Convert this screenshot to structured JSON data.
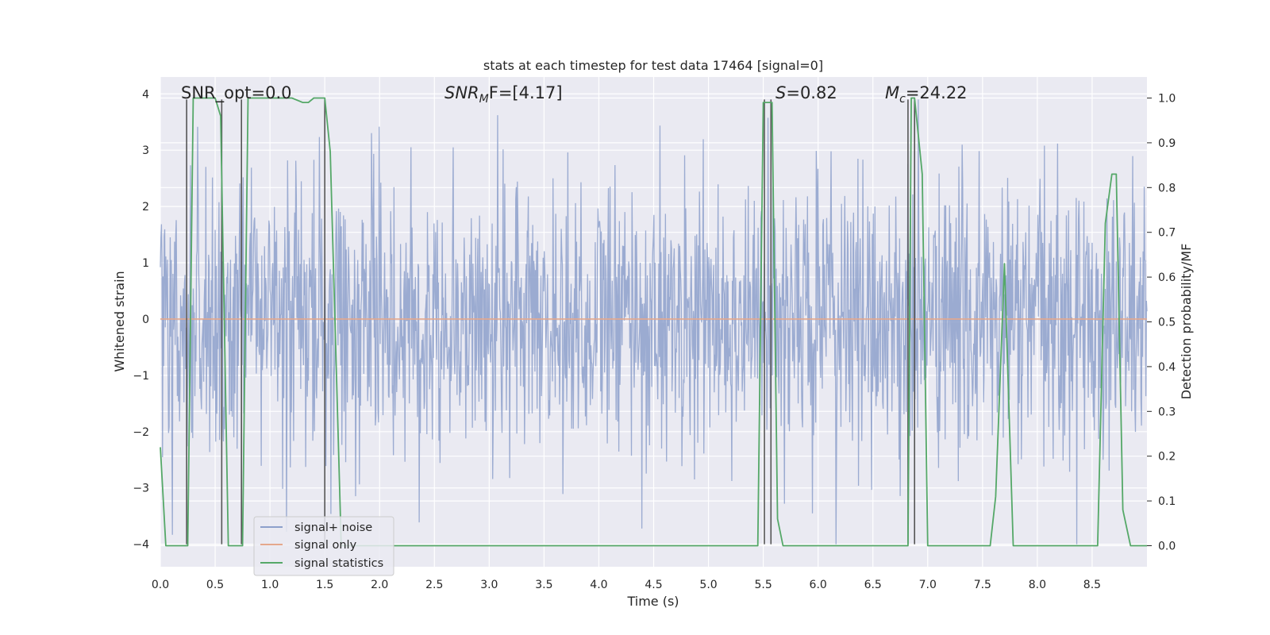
{
  "chart_data": {
    "type": "line",
    "title": "stats at each timestep for test data 17464 [signal=0]",
    "xlabel": "Time (s)",
    "ylabel": "Whitened strain",
    "y2label": "Detection probability/MF",
    "xlim": [
      0.0,
      9.0
    ],
    "ylim": [
      -4.4,
      4.3
    ],
    "y2lim": [
      -0.047,
      1.047
    ],
    "xticks": [
      0.0,
      0.5,
      1.0,
      1.5,
      2.0,
      2.5,
      3.0,
      3.5,
      4.0,
      4.5,
      5.0,
      5.5,
      6.0,
      6.5,
      7.0,
      7.5,
      8.0,
      8.5
    ],
    "xtick_labels": [
      "0.0",
      "0.5",
      "1.0",
      "1.5",
      "2.0",
      "2.5",
      "3.0",
      "3.5",
      "4.0",
      "4.5",
      "5.0",
      "5.5",
      "6.0",
      "6.5",
      "7.0",
      "7.5",
      "8.0",
      "8.5"
    ],
    "yticks": [
      -4,
      -3,
      -2,
      -1,
      0,
      1,
      2,
      3,
      4
    ],
    "ytick_labels": [
      "−4",
      "−3",
      "−2",
      "−1",
      "0",
      "1",
      "2",
      "3",
      "4"
    ],
    "y2ticks": [
      0.0,
      0.1,
      0.2,
      0.3,
      0.4,
      0.5,
      0.6,
      0.7,
      0.8,
      0.9,
      1.0
    ],
    "y2tick_labels": [
      "0.0",
      "0.1",
      "0.2",
      "0.3",
      "0.4",
      "0.5",
      "0.6",
      "0.7",
      "0.8",
      "0.9",
      "1.0"
    ],
    "grid": true,
    "legend_position": "lower-left",
    "annotations": {
      "snr_opt": "SNR_opt=0.0",
      "snr_mf_base": "SNR",
      "snr_mf_sub": "M",
      "snr_mf_rest": "F=[4.17]",
      "s_italic": "S",
      "s_rest": "=0.82",
      "mc_base": "M",
      "mc_sub": "c",
      "mc_rest": "=24.22"
    },
    "series": [
      {
        "name": "signal+ noise",
        "axis": "left",
        "color": "#8da0cb",
        "kind": "noise",
        "duration": 9.0,
        "samples": 1800,
        "approx_std": 1.0,
        "approx_range": [
          -4.0,
          3.9
        ]
      },
      {
        "name": "signal only",
        "axis": "left",
        "color": "#e5a88c",
        "x": [
          0.0,
          9.0
        ],
        "y": [
          0.0,
          0.0
        ]
      },
      {
        "name": "signal statistics",
        "axis": "right",
        "color": "#55a868",
        "x": [
          0.0,
          0.05,
          0.25,
          0.3,
          0.45,
          0.5,
          0.55,
          0.62,
          0.7,
          0.75,
          0.8,
          1.2,
          1.3,
          1.35,
          1.4,
          1.5,
          1.55,
          1.65,
          5.45,
          5.5,
          5.58,
          5.63,
          5.68,
          6.82,
          6.85,
          6.88,
          6.95,
          7.0,
          7.57,
          7.62,
          7.7,
          7.78,
          8.5,
          8.55,
          8.62,
          8.68,
          8.72,
          8.78,
          8.85,
          9.0
        ],
        "y": [
          0.22,
          0.0,
          0.0,
          1.0,
          1.0,
          1.0,
          0.96,
          0.0,
          0.0,
          0.0,
          1.0,
          1.0,
          0.99,
          0.99,
          1.0,
          1.0,
          0.88,
          0.0,
          0.0,
          0.99,
          0.99,
          0.06,
          0.0,
          0.0,
          1.0,
          1.0,
          0.83,
          0.0,
          0.0,
          0.11,
          0.63,
          0.0,
          0.0,
          0.0,
          0.72,
          0.83,
          0.83,
          0.08,
          0.0,
          0.0
        ]
      }
    ],
    "vertical_markers": {
      "color": "#555555",
      "x": [
        0.24,
        0.56,
        0.74,
        1.5,
        5.51,
        5.57,
        6.82,
        6.88
      ],
      "ymax": 3.9,
      "ymin": -4.0
    },
    "legend": [
      "signal+ noise",
      "signal only",
      "signal statistics"
    ]
  }
}
